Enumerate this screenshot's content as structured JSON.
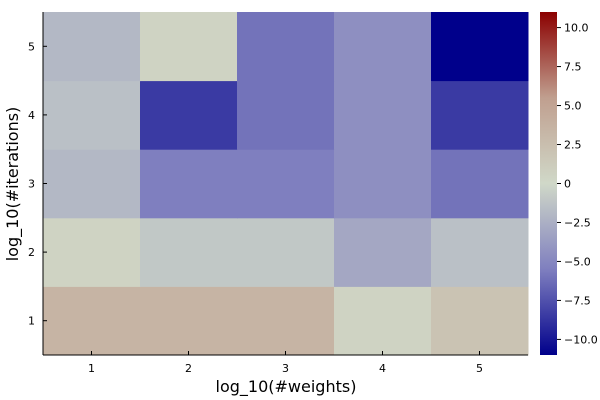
{
  "chart_data": {
    "type": "heatmap",
    "title": "",
    "xlabel": "log_10(#weights)",
    "ylabel": "log_10(#iterations)",
    "x": [
      1,
      2,
      3,
      4,
      5
    ],
    "y": [
      1,
      2,
      3,
      4,
      5
    ],
    "x_tick_labels": [
      "1",
      "2",
      "3",
      "4",
      "5"
    ],
    "y_tick_labels": [
      "1",
      "2",
      "3",
      "4",
      "5"
    ],
    "z": [
      [
        3.5,
        3.5,
        3.5,
        0.5,
        2.0
      ],
      [
        0.5,
        -1.0,
        -1.0,
        -3.0,
        -1.5
      ],
      [
        -2.0,
        -5.5,
        -5.5,
        -4.5,
        -6.0
      ],
      [
        -1.5,
        -8.5,
        -6.0,
        -4.5,
        -8.5
      ],
      [
        -2.0,
        0.5,
        -6.0,
        -4.5,
        -11.0
      ]
    ],
    "zlim": [
      -11,
      11
    ],
    "colorbar": {
      "ticks": [
        -10,
        -7.5,
        -5,
        -2.5,
        0,
        2.5,
        5,
        7.5,
        10
      ],
      "tick_labels": [
        "−10.0",
        "−7.5",
        "−5.0",
        "−2.5",
        "0",
        "2.5",
        "5.0",
        "7.5",
        "10.0"
      ],
      "colors": [
        "#00008b",
        "#7f7fbf",
        "#d0d8c8",
        "#c09f8f",
        "#8b0000"
      ]
    },
    "grid": false,
    "legend": "colorbar-right"
  }
}
